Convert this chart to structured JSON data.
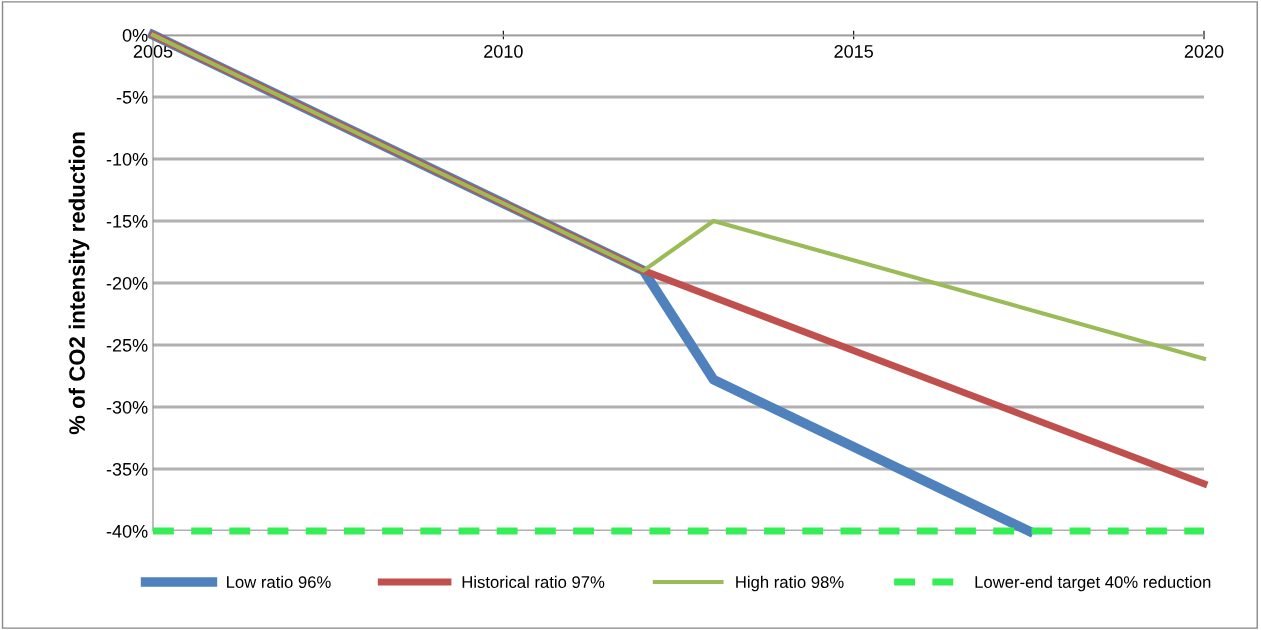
{
  "chart_data": {
    "type": "line",
    "ylabel": "% of CO2 intensity reduction",
    "xlim": [
      2005,
      2020
    ],
    "xticks": [
      2005,
      2010,
      2015,
      2020
    ],
    "ylim": [
      -40,
      0
    ],
    "yticks": [
      {
        "value": 0,
        "label": "0%"
      },
      {
        "value": -5,
        "label": "-5%"
      },
      {
        "value": -10,
        "label": "-10%"
      },
      {
        "value": -15,
        "label": "-15%"
      },
      {
        "value": -20,
        "label": "-20%"
      },
      {
        "value": -25,
        "label": "-25%"
      },
      {
        "value": -30,
        "label": "-30%"
      },
      {
        "value": -35,
        "label": "-35%"
      },
      {
        "value": -40,
        "label": "-40%"
      }
    ],
    "grid": "y",
    "legend": "bottom",
    "marker": "none",
    "series": [
      {
        "name": "Low ratio 96%",
        "color": "#4f81bd",
        "x": [
          2005,
          2012,
          2013,
          2017.5
        ],
        "values": [
          0,
          -19,
          -27.8,
          -40
        ]
      },
      {
        "name": "Historical ratio 97%",
        "color": "#c0504d",
        "x": [
          2005,
          2012,
          2020
        ],
        "values": [
          0,
          -19,
          -36.2
        ]
      },
      {
        "name": "High ratio 98%",
        "color": "#9bbb59",
        "x": [
          2005,
          2012,
          2013,
          2020
        ],
        "values": [
          0,
          -19,
          -15,
          -26.1
        ]
      },
      {
        "name": "Lower-end target 40% reduction",
        "color": "#33ee55",
        "line_style": "dashed",
        "x": [
          2005,
          2020
        ],
        "values": [
          -40,
          -40
        ]
      }
    ]
  }
}
